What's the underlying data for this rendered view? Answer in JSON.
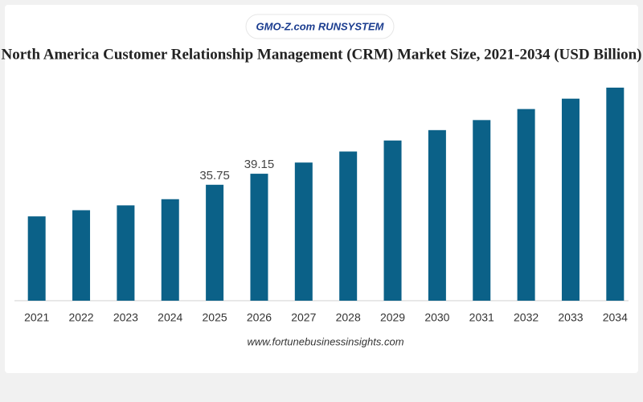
{
  "chart_data": {
    "type": "bar",
    "logo": "GMO-Z.com RUNSYSTEM",
    "title": "North America Customer Relationship Management (CRM) Market Size, 2021-2034 (USD Billion)",
    "categories": [
      "2021",
      "2022",
      "2023",
      "2024",
      "2025",
      "2026",
      "2027",
      "2028",
      "2029",
      "2030",
      "2031",
      "2032",
      "2033",
      "2034"
    ],
    "values": [
      26.0,
      27.9,
      29.4,
      31.3,
      35.75,
      39.15,
      42.6,
      46.0,
      49.4,
      52.6,
      55.7,
      59.1,
      62.3,
      65.7
    ],
    "value_labels": [
      null,
      null,
      null,
      null,
      "35.75",
      "39.15",
      null,
      null,
      null,
      null,
      null,
      null,
      null,
      null
    ],
    "color": "#0b6188",
    "source": "www.fortunebusinessinsights.com"
  }
}
